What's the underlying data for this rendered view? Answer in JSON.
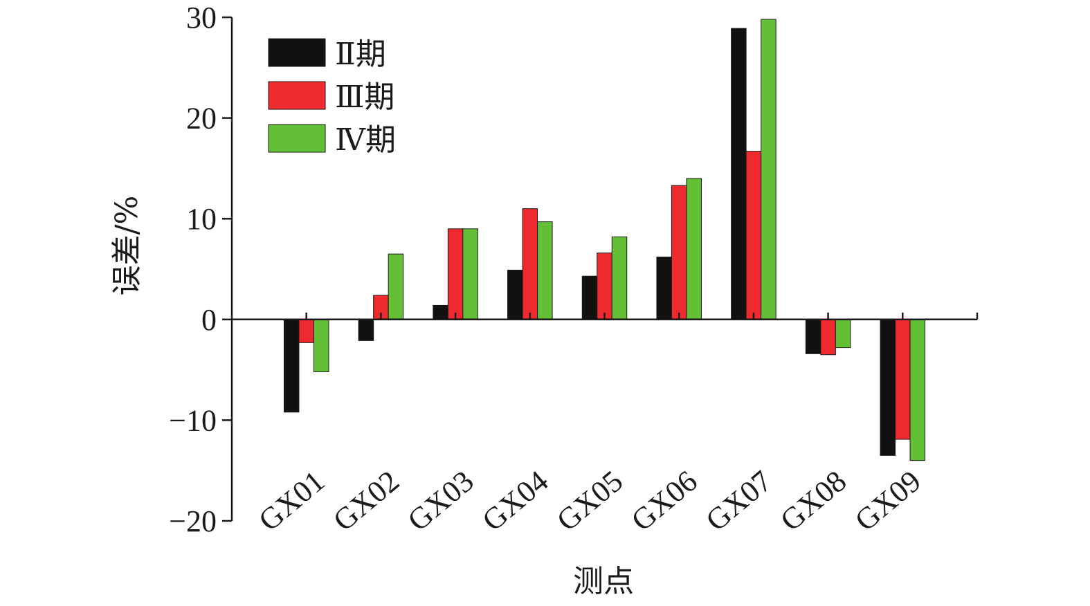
{
  "chart_data": {
    "type": "bar",
    "xlabel": "测点",
    "ylabel": "误差/%",
    "ylim": [
      -20,
      30
    ],
    "yticks": [
      "30",
      "20",
      "10",
      "0",
      "−10",
      "−20"
    ],
    "ytick_values": [
      30,
      20,
      10,
      0,
      -10,
      -20
    ],
    "grid": false,
    "legend_position": "top-left",
    "categories": [
      "GX01",
      "GX02",
      "GX03",
      "GX04",
      "GX05",
      "GX06",
      "GX07",
      "GX08",
      "GX09"
    ],
    "series": [
      {
        "name": "Ⅱ期",
        "color": "#111111",
        "values": [
          -9.2,
          -2.1,
          1.4,
          4.9,
          4.3,
          6.2,
          28.9,
          -3.4,
          -13.5
        ]
      },
      {
        "name": "Ⅲ期",
        "color": "#ee2a2e",
        "values": [
          -2.3,
          2.4,
          9.0,
          11.0,
          6.6,
          13.3,
          16.7,
          -3.5,
          -11.9
        ]
      },
      {
        "name": "Ⅳ期",
        "color": "#62bf36",
        "values": [
          -5.2,
          6.5,
          9.0,
          9.7,
          8.2,
          14.0,
          29.8,
          -2.8,
          -14.0
        ]
      }
    ]
  }
}
